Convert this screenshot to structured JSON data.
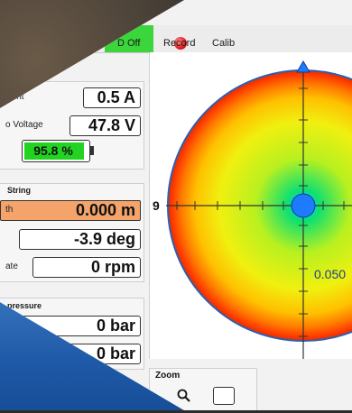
{
  "toolbar": {
    "onoff_label": "D Off",
    "record_label": "Record",
    "calib_label": "Calib"
  },
  "power": {
    "current_label": "rrent",
    "current_value": "0.5 A",
    "voltage_label": "o Voltage",
    "voltage_value": "47.8 V",
    "battery_percent": "95.8 %",
    "battery_fill": 0.958
  },
  "string": {
    "title": "String",
    "depth_label": "th",
    "depth_value": "0.000 m",
    "angle_value": "-3.9 deg",
    "rate_label": "ate",
    "rate_value": "0 rpm"
  },
  "pressure": {
    "title": "pressure",
    "value1": "0 bar",
    "value2": "0 bar"
  },
  "plot": {
    "left_label": "9",
    "scale_label": "0.050"
  },
  "zoom": {
    "title": "Zoom"
  },
  "colors": {
    "on_green": "#3bd63b",
    "battery_green": "#22d322",
    "depth_orange": "#f4a46a",
    "record_red": "#e21b1b",
    "center_blue": "#1e7bff"
  }
}
